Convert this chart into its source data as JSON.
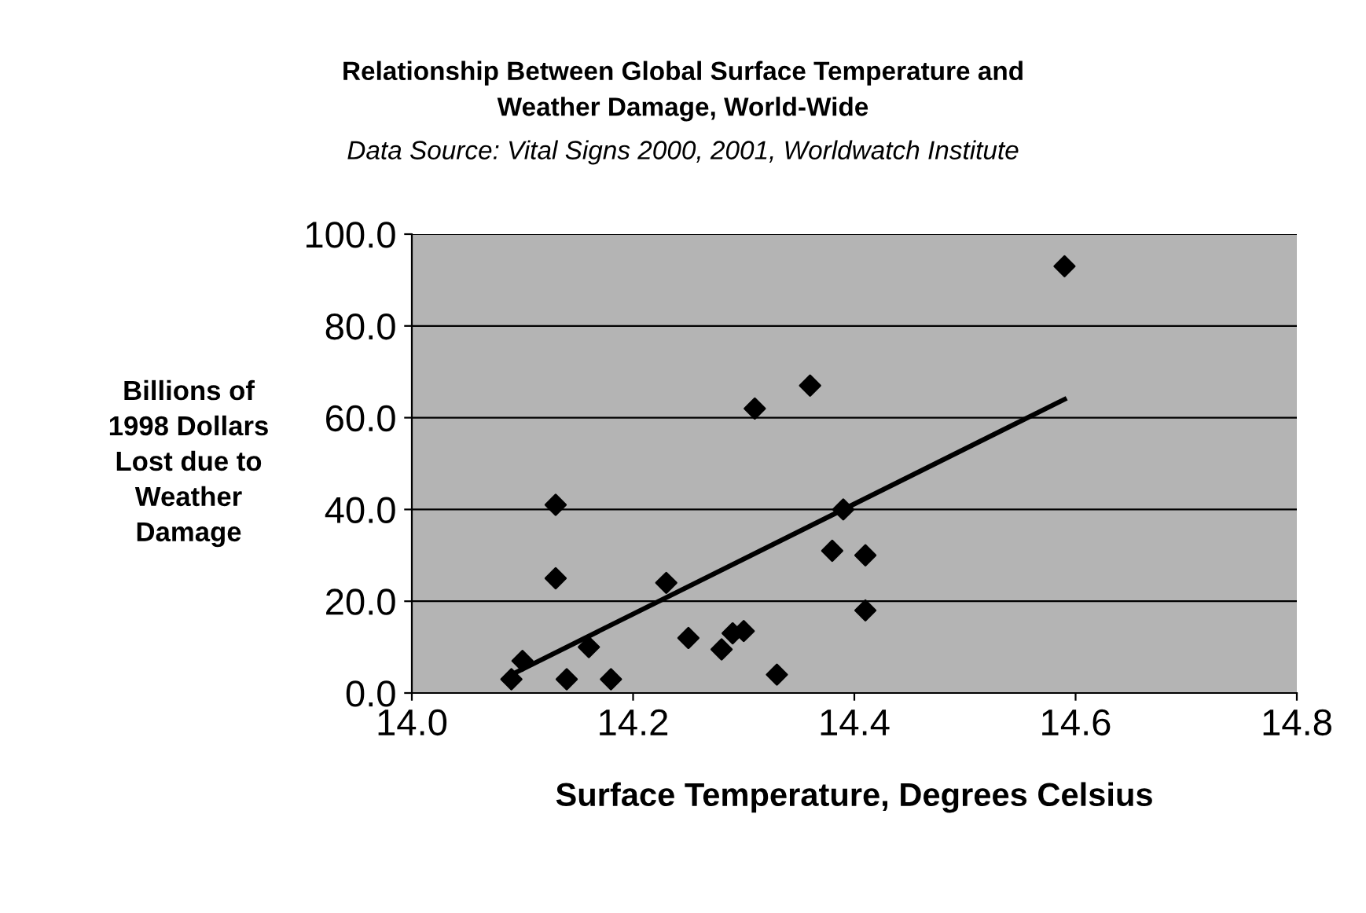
{
  "chart_data": {
    "type": "scatter",
    "title": "Relationship Between Global Surface Temperature and\nWeather Damage, World-Wide",
    "subtitle": "Data Source: Vital Signs 2000, 2001, Worldwatch Institute",
    "xlabel": "Surface Temperature, Degrees Celsius",
    "ylabel": "Billions of\n1998 Dollars\nLost due to\nWeather\nDamage",
    "series": [
      {
        "color": "#000000",
        "marker": "diamond",
        "x": [
          14.09,
          14.1,
          14.13,
          14.13,
          14.14,
          14.16,
          14.18,
          14.23,
          14.25,
          14.28,
          14.29,
          14.3,
          14.31,
          14.33,
          14.36,
          14.38,
          14.39,
          14.41,
          14.41,
          14.59
        ],
        "values": [
          3,
          7,
          41,
          25,
          3,
          10,
          3,
          24,
          12,
          9.5,
          13,
          13.5,
          62,
          4,
          67,
          31,
          40,
          30,
          18,
          93
        ]
      },
      {
        "type": "line",
        "color": "#000000",
        "marker": "none",
        "line_style": "solid",
        "x": [
          14.09,
          14.59
        ],
        "values": [
          4,
          64
        ]
      }
    ],
    "xlim": [
      14.0,
      14.8
    ],
    "xticks": [
      {
        "value": 14.0,
        "label": "14.0"
      },
      {
        "value": 14.2,
        "label": "14.2"
      },
      {
        "value": 14.4,
        "label": "14.4"
      },
      {
        "value": 14.6,
        "label": "14.6"
      },
      {
        "value": 14.8,
        "label": "14.8"
      }
    ],
    "ylim": [
      0,
      100
    ],
    "yticks": [
      {
        "value": 0,
        "label": "0.0"
      },
      {
        "value": 20,
        "label": "20.0"
      },
      {
        "value": 40,
        "label": "40.0"
      },
      {
        "value": 60,
        "label": "60.0"
      },
      {
        "value": 80,
        "label": "80.0"
      },
      {
        "value": 100,
        "label": "100.0"
      }
    ],
    "grid": "y",
    "legend": false
  }
}
